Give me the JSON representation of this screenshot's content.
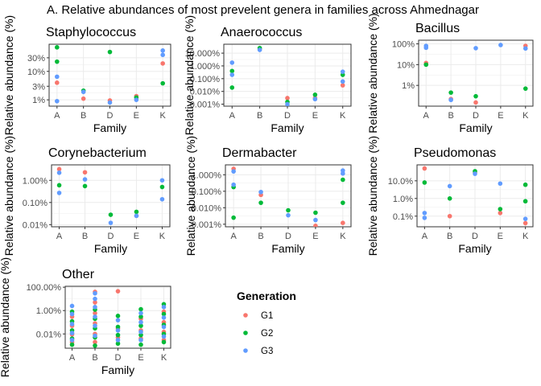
{
  "figure_title": "A. Relative abundances of most prevelent genera in families across Ahmednagar",
  "legend": {
    "title": "Generation",
    "items": [
      {
        "label": "G1",
        "color": "#F8766D"
      },
      {
        "label": "G2",
        "color": "#00BA38"
      },
      {
        "label": "G3",
        "color": "#619CFF"
      }
    ]
  },
  "chart_data": [
    {
      "type": "scatter",
      "title": "Staphylococcus",
      "xlabel": "Family",
      "ylabel": "Relative abundance (%)",
      "categories": [
        "A",
        "B",
        "D",
        "E",
        "K"
      ],
      "scale": "log10",
      "ylim": [
        0.6,
        90
      ],
      "yticks": [
        {
          "value": 1,
          "label": "1%"
        },
        {
          "value": 3,
          "label": "3%"
        },
        {
          "value": 10,
          "label": "10%"
        },
        {
          "value": 30,
          "label": "30%"
        }
      ],
      "series": [
        {
          "name": "G1",
          "points": [
            [
              "A",
              4.0
            ],
            [
              "B",
              1.1
            ],
            [
              "D",
              0.95
            ],
            [
              "E",
              1.35
            ],
            [
              "K",
              19
            ]
          ]
        },
        {
          "name": "G2",
          "points": [
            [
              "A",
              70
            ],
            [
              "A",
              22
            ],
            [
              "B",
              2.1
            ],
            [
              "D",
              48
            ],
            [
              "E",
              1.2
            ],
            [
              "K",
              3.8
            ]
          ]
        },
        {
          "name": "G3",
          "points": [
            [
              "A",
              6.5
            ],
            [
              "A",
              0.9
            ],
            [
              "B",
              1.9
            ],
            [
              "D",
              0.8
            ],
            [
              "E",
              1.0
            ],
            [
              "K",
              54
            ],
            [
              "K",
              38
            ]
          ]
        }
      ]
    },
    {
      "type": "scatter",
      "title": "Anaerococcus",
      "xlabel": "Family",
      "ylabel": "Relative abundance (%)",
      "categories": [
        "A",
        "B",
        "D",
        "E",
        "K"
      ],
      "scale": "log10",
      "ylim": [
        0.0007,
        50
      ],
      "yticks": [
        {
          "value": 0.001,
          "label": "0.001%"
        },
        {
          "value": 0.01,
          "label": "0.010%"
        },
        {
          "value": 0.1,
          "label": "0.100%"
        },
        {
          "value": 1,
          "label": "1.000%"
        },
        {
          "value": 10,
          "label": "10.000%"
        }
      ],
      "series": [
        {
          "name": "G1",
          "points": [
            [
              "B",
              20
            ],
            [
              "D",
              0.003
            ],
            [
              "E",
              0.003
            ],
            [
              "K",
              0.03
            ]
          ]
        },
        {
          "name": "G2",
          "points": [
            [
              "A",
              0.4
            ],
            [
              "A",
              0.02
            ],
            [
              "B",
              25
            ],
            [
              "D",
              0.0015
            ],
            [
              "E",
              0.0055
            ],
            [
              "K",
              0.2
            ]
          ]
        },
        {
          "name": "G3",
          "points": [
            [
              "A",
              1.8
            ],
            [
              "A",
              0.2
            ],
            [
              "B",
              18
            ],
            [
              "D",
              0.001
            ],
            [
              "E",
              0.0025
            ],
            [
              "K",
              0.35
            ],
            [
              "K",
              0.06
            ]
          ]
        }
      ]
    },
    {
      "type": "scatter",
      "title": "Bacillus",
      "xlabel": "Family",
      "ylabel": "Relative abundance (%)",
      "categories": [
        "A",
        "B",
        "D",
        "E",
        "K"
      ],
      "scale": "log10",
      "ylim": [
        0.1,
        150
      ],
      "yticks": [
        {
          "value": 1,
          "label": "1%"
        },
        {
          "value": 10,
          "label": "10%"
        },
        {
          "value": 100,
          "label": "100%"
        }
      ],
      "series": [
        {
          "name": "G1",
          "points": [
            [
              "A",
              12
            ],
            [
              "B",
              0.22
            ],
            [
              "D",
              0.15
            ],
            [
              "K",
              80
            ]
          ]
        },
        {
          "name": "G2",
          "points": [
            [
              "A",
              10
            ],
            [
              "B",
              0.45
            ],
            [
              "D",
              0.3
            ],
            [
              "K",
              0.7
            ]
          ]
        },
        {
          "name": "G3",
          "points": [
            [
              "A",
              80
            ],
            [
              "A",
              65
            ],
            [
              "B",
              0.2
            ],
            [
              "D",
              62
            ],
            [
              "E",
              88
            ],
            [
              "K",
              60
            ]
          ]
        }
      ]
    },
    {
      "type": "scatter",
      "title": "Corynebacterium",
      "xlabel": "Family",
      "ylabel": "Relative abundance (%)",
      "categories": [
        "A",
        "B",
        "D",
        "E",
        "K"
      ],
      "scale": "log10",
      "ylim": [
        0.008,
        5
      ],
      "yticks": [
        {
          "value": 0.01,
          "label": "0.01%"
        },
        {
          "value": 0.1,
          "label": "0.10%"
        },
        {
          "value": 1,
          "label": "1.00%"
        }
      ],
      "series": [
        {
          "name": "G1",
          "points": [
            [
              "A",
              3.2
            ],
            [
              "B",
              2.3
            ],
            [
              "E",
              0.025
            ]
          ]
        },
        {
          "name": "G2",
          "points": [
            [
              "A",
              0.6
            ],
            [
              "B",
              0.55
            ],
            [
              "D",
              0.028
            ],
            [
              "E",
              0.038
            ],
            [
              "K",
              0.5
            ]
          ]
        },
        {
          "name": "G3",
          "points": [
            [
              "A",
              2.2
            ],
            [
              "A",
              0.27
            ],
            [
              "B",
              1.1
            ],
            [
              "D",
              0.012
            ],
            [
              "E",
              0.025
            ],
            [
              "K",
              1.0
            ],
            [
              "K",
              0.14
            ]
          ]
        }
      ]
    },
    {
      "type": "scatter",
      "title": "Dermabacter",
      "xlabel": "Family",
      "ylabel": "Relative abundance (%)",
      "categories": [
        "A",
        "B",
        "D",
        "E",
        "K"
      ],
      "scale": "log10",
      "ylim": [
        0.0007,
        4
      ],
      "yticks": [
        {
          "value": 0.001,
          "label": "0.001%"
        },
        {
          "value": 0.01,
          "label": "0.010%"
        },
        {
          "value": 0.1,
          "label": "0.100%"
        },
        {
          "value": 1,
          "label": "1.000%"
        }
      ],
      "series": [
        {
          "name": "G1",
          "points": [
            [
              "A",
              2.3
            ],
            [
              "B",
              0.06
            ],
            [
              "E",
              0.0008
            ],
            [
              "K",
              0.0012
            ]
          ]
        },
        {
          "name": "G2",
          "points": [
            [
              "A",
              0.18
            ],
            [
              "A",
              0.0025
            ],
            [
              "B",
              0.02
            ],
            [
              "D",
              0.007
            ],
            [
              "E",
              0.005
            ],
            [
              "K",
              0.5
            ],
            [
              "K",
              0.02
            ]
          ]
        },
        {
          "name": "G3",
          "points": [
            [
              "A",
              1.6
            ],
            [
              "A",
              0.25
            ],
            [
              "B",
              0.09
            ],
            [
              "D",
              0.0035
            ],
            [
              "E",
              0.0018
            ],
            [
              "K",
              1.8
            ],
            [
              "K",
              1.2
            ]
          ]
        }
      ]
    },
    {
      "type": "scatter",
      "title": "Pseudomonas",
      "xlabel": "Family",
      "ylabel": "Relative abundance (%)",
      "categories": [
        "A",
        "B",
        "D",
        "E",
        "K"
      ],
      "scale": "log10",
      "ylim": [
        0.025,
        80
      ],
      "yticks": [
        {
          "value": 0.1,
          "label": "0.1%"
        },
        {
          "value": 1,
          "label": "1.0%"
        },
        {
          "value": 10,
          "label": "10.0%"
        }
      ],
      "series": [
        {
          "name": "G1",
          "points": [
            [
              "A",
              50
            ],
            [
              "B",
              0.1
            ],
            [
              "D",
              30
            ],
            [
              "E",
              0.15
            ],
            [
              "K",
              0.04
            ]
          ]
        },
        {
          "name": "G2",
          "points": [
            [
              "A",
              8
            ],
            [
              "B",
              1.0
            ],
            [
              "D",
              35
            ],
            [
              "E",
              0.25
            ],
            [
              "K",
              6
            ],
            [
              "K",
              0.7
            ]
          ]
        },
        {
          "name": "G3",
          "points": [
            [
              "A",
              0.15
            ],
            [
              "A",
              0.08
            ],
            [
              "B",
              5
            ],
            [
              "D",
              25
            ],
            [
              "E",
              7
            ],
            [
              "K",
              0.07
            ]
          ]
        }
      ]
    },
    {
      "type": "scatter",
      "title": "Other",
      "xlabel": "Family",
      "ylabel": "Relative abundance (%)",
      "categories": [
        "A",
        "B",
        "D",
        "E",
        "K"
      ],
      "scale": "log10",
      "ylim": [
        0.0006,
        120
      ],
      "yticks": [
        {
          "value": 0.01,
          "label": "0.01%"
        },
        {
          "value": 1,
          "label": "1.00%"
        },
        {
          "value": 100,
          "label": "100.00%"
        }
      ],
      "series": [
        {
          "name": "G1",
          "points": [
            [
              "A",
              0.3
            ],
            [
              "A",
              0.05
            ],
            [
              "A",
              0.009
            ],
            [
              "A",
              0.002
            ],
            [
              "B",
              40
            ],
            [
              "B",
              5
            ],
            [
              "B",
              0.6
            ],
            [
              "B",
              0.08
            ],
            [
              "B",
              0.01
            ],
            [
              "B",
              0.002
            ],
            [
              "D",
              45
            ],
            [
              "D",
              0.03
            ],
            [
              "D",
              0.005
            ],
            [
              "E",
              0.2
            ],
            [
              "E",
              0.02
            ],
            [
              "E",
              0.004
            ],
            [
              "K",
              0.8
            ],
            [
              "K",
              0.1
            ],
            [
              "K",
              0.015
            ],
            [
              "K",
              0.003
            ]
          ]
        },
        {
          "name": "G2",
          "points": [
            [
              "A",
              0.8
            ],
            [
              "A",
              0.12
            ],
            [
              "A",
              0.02
            ],
            [
              "A",
              0.004
            ],
            [
              "A",
              0.0012
            ],
            [
              "B",
              1.2
            ],
            [
              "B",
              0.2
            ],
            [
              "B",
              0.03
            ],
            [
              "B",
              0.005
            ],
            [
              "B",
              0.001
            ],
            [
              "D",
              0.35
            ],
            [
              "D",
              0.04
            ],
            [
              "D",
              0.008
            ],
            [
              "D",
              0.0015
            ],
            [
              "E",
              1.3
            ],
            [
              "E",
              0.3
            ],
            [
              "E",
              0.05
            ],
            [
              "E",
              0.008
            ],
            [
              "E",
              0.0012
            ],
            [
              "K",
              3.5
            ],
            [
              "K",
              0.5
            ],
            [
              "K",
              0.06
            ],
            [
              "K",
              0.01
            ],
            [
              "K",
              0.002
            ]
          ]
        },
        {
          "name": "G3",
          "points": [
            [
              "A",
              2.5
            ],
            [
              "A",
              0.5
            ],
            [
              "A",
              0.07
            ],
            [
              "A",
              0.012
            ],
            [
              "A",
              0.003
            ],
            [
              "B",
              30
            ],
            [
              "B",
              10
            ],
            [
              "B",
              2
            ],
            [
              "B",
              0.3
            ],
            [
              "B",
              0.05
            ],
            [
              "B",
              0.007
            ],
            [
              "D",
              0.15
            ],
            [
              "D",
              0.02
            ],
            [
              "D",
              0.003
            ],
            [
              "E",
              0.6
            ],
            [
              "E",
              0.1
            ],
            [
              "E",
              0.015
            ],
            [
              "E",
              0.003
            ],
            [
              "K",
              2
            ],
            [
              "K",
              0.25
            ],
            [
              "K",
              0.04
            ],
            [
              "K",
              0.006
            ]
          ]
        }
      ]
    }
  ]
}
